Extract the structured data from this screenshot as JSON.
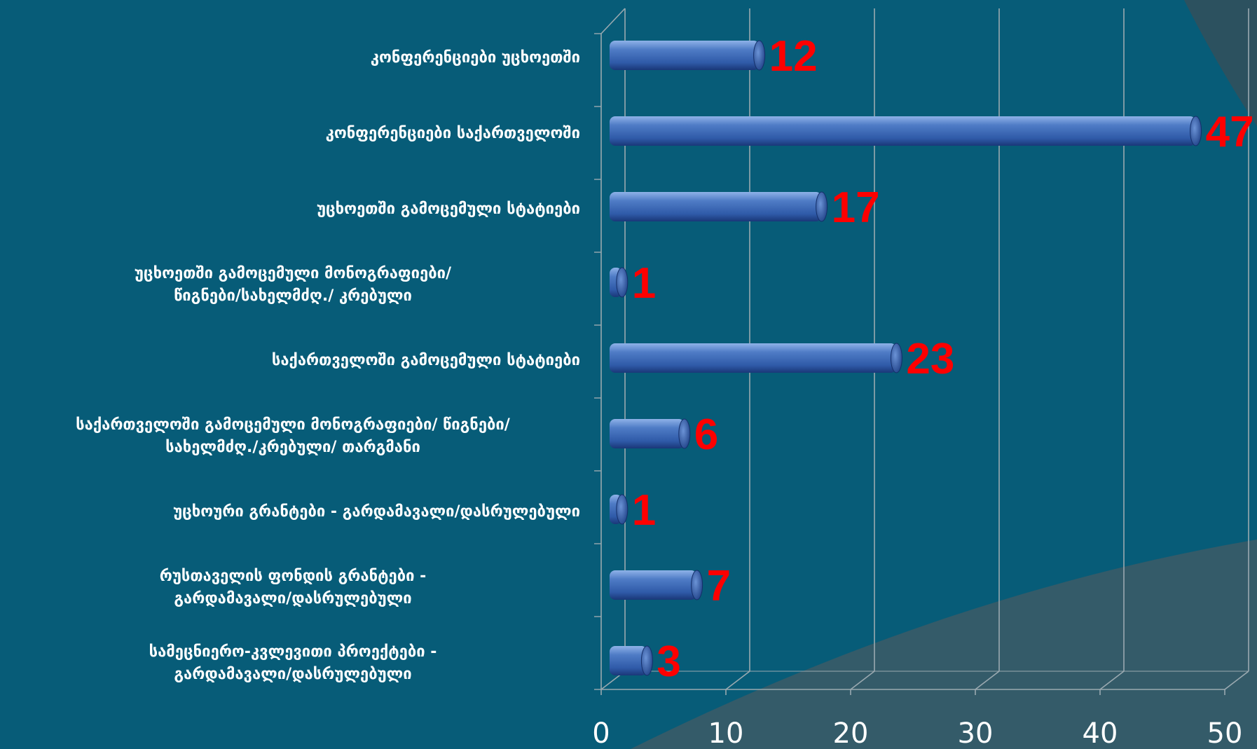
{
  "chart_data": {
    "type": "bar",
    "orientation": "horizontal",
    "categories": [
      "კონფერენციები უცხოეთში",
      "კონფერენციები საქართველოში",
      "უცხოეთში გამოცემული სტატიები",
      "უცხოეთში გამოცემული მონოგრაფიები/ წიგნები/სახელმძღ./ კრებული",
      "საქართველოში გამოცემული სტატიები",
      "საქართველოში გამოცემული მონოგრაფიები/ წიგნები/ სახელმძღ./კრებული/ თარგმანი",
      "უცხოური გრანტები - გარდამავალი/დასრულებული",
      "რუსთაველის ფონდის გრანტები - გარდამავალი/დასრულებული",
      "სამეცნიერო-კვლევითი პროექტები - გარდამავალი/დასრულებული"
    ],
    "category_lines": [
      [
        "კონფერენციები უცხოეთში"
      ],
      [
        "კონფერენციები საქართველოში"
      ],
      [
        "უცხოეთში გამოცემული სტატიები"
      ],
      [
        "უცხოეთში გამოცემული მონოგრაფიები/",
        "წიგნები/სახელმძღ./ კრებული"
      ],
      [
        "საქართველოში გამოცემული სტატიები"
      ],
      [
        "საქართველოში გამოცემული მონოგრაფიები/ წიგნები/",
        "სახელმძღ./კრებული/ თარგმანი"
      ],
      [
        "უცხოური გრანტები - გარდამავალი/დასრულებული"
      ],
      [
        "რუსთაველის ფონდის გრანტები -",
        "გარდამავალი/დასრულებული"
      ],
      [
        "სამეცნიერო-კვლევითი პროექტები -",
        "გარდამავალი/დასრულებული"
      ]
    ],
    "values": [
      12,
      47,
      17,
      1,
      23,
      6,
      1,
      7,
      3
    ],
    "data_labels": [
      "12",
      "47",
      "17",
      "1",
      "23",
      "6",
      "1",
      "7",
      "3"
    ],
    "xlim": [
      0,
      50
    ],
    "x_ticks": [
      "0",
      "10",
      "20",
      "30",
      "40",
      "50"
    ],
    "grid": true,
    "colors": {
      "background": "#075c78",
      "bar": "#3a68b6",
      "bar_light": "#7aa0dc",
      "bar_dark": "#1a3778",
      "data_label": "#ff0000",
      "tick_label": "#ffffff",
      "grid": "#9aa9b0"
    }
  }
}
